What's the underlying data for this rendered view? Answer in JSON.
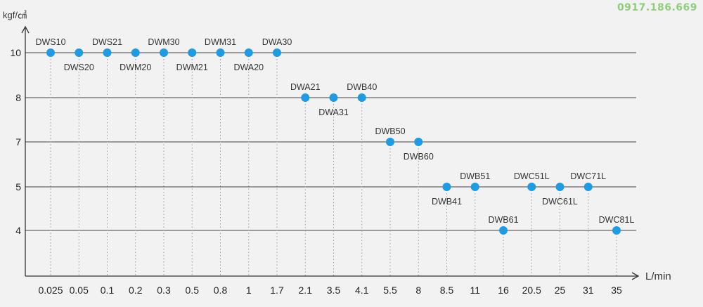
{
  "phone": "0917.186.669",
  "chart_data": {
    "type": "scatter",
    "title": "",
    "ylabel": "kgf/㎠",
    "xlabel": "L/min",
    "x_categories": [
      "0.025",
      "0.05",
      "0.1",
      "0.2",
      "0.3",
      "0.5",
      "0.8",
      "1",
      "1.7",
      "2.1",
      "3.5",
      "4.1",
      "5.5",
      "8",
      "8.5",
      "11",
      "16",
      "20.5",
      "25",
      "31",
      "35"
    ],
    "y_ticks": [
      10,
      8,
      7,
      5,
      4
    ],
    "grid": "horizontal lines at each y tick; dotted vertical drop lines under each point",
    "points": [
      {
        "label": "DWS10",
        "x": "0.025",
        "y": 10,
        "label_pos": "above"
      },
      {
        "label": "DWS20",
        "x": "0.05",
        "y": 10,
        "label_pos": "below"
      },
      {
        "label": "DWS21",
        "x": "0.1",
        "y": 10,
        "label_pos": "above"
      },
      {
        "label": "DWM20",
        "x": "0.2",
        "y": 10,
        "label_pos": "below"
      },
      {
        "label": "DWM30",
        "x": "0.3",
        "y": 10,
        "label_pos": "above"
      },
      {
        "label": "DWM21",
        "x": "0.5",
        "y": 10,
        "label_pos": "below"
      },
      {
        "label": "DWM31",
        "x": "0.8",
        "y": 10,
        "label_pos": "above"
      },
      {
        "label": "DWA20",
        "x": "1",
        "y": 10,
        "label_pos": "below"
      },
      {
        "label": "DWA30",
        "x": "1.7",
        "y": 10,
        "label_pos": "above"
      },
      {
        "label": "DWA21",
        "x": "2.1",
        "y": 8,
        "label_pos": "above"
      },
      {
        "label": "DWA31",
        "x": "3.5",
        "y": 8,
        "label_pos": "below"
      },
      {
        "label": "DWB40",
        "x": "4.1",
        "y": 8,
        "label_pos": "above"
      },
      {
        "label": "DWB50",
        "x": "5.5",
        "y": 7,
        "label_pos": "above"
      },
      {
        "label": "DWB60",
        "x": "8",
        "y": 7,
        "label_pos": "below"
      },
      {
        "label": "DWB41",
        "x": "8.5",
        "y": 5,
        "label_pos": "below"
      },
      {
        "label": "DWB51",
        "x": "11",
        "y": 5,
        "label_pos": "above"
      },
      {
        "label": "DWB61",
        "x": "16",
        "y": 4,
        "label_pos": "above"
      },
      {
        "label": "DWC51L",
        "x": "20.5",
        "y": 5,
        "label_pos": "above"
      },
      {
        "label": "DWC61L",
        "x": "25",
        "y": 5,
        "label_pos": "below"
      },
      {
        "label": "DWC71L",
        "x": "31",
        "y": 5,
        "label_pos": "above"
      },
      {
        "label": "DWC81L",
        "x": "35",
        "y": 4,
        "label_pos": "above"
      }
    ],
    "colors": {
      "point": "#1e9be3",
      "axis": "#333333",
      "grid": "#444444",
      "dropline": "#999999"
    }
  }
}
